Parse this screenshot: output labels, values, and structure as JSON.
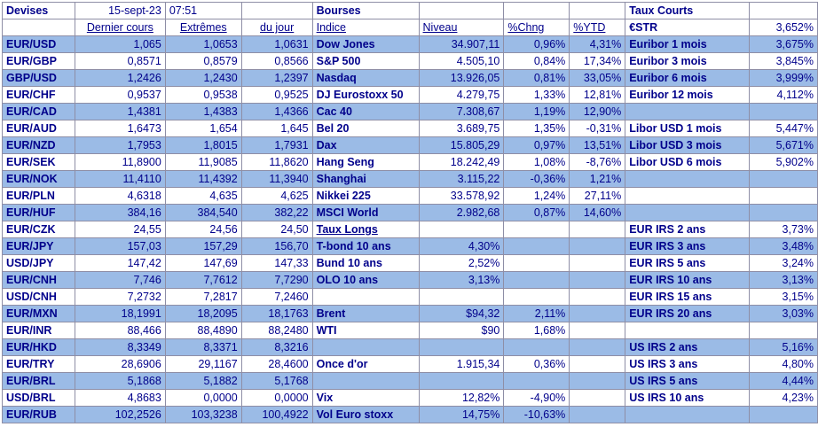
{
  "colors": {
    "odd_row_bg": "#9bbbe6",
    "even_row_bg": "#ffffff",
    "text": "#00008b",
    "border": "#8e8ea6"
  },
  "header": {
    "devises": "Devises",
    "date": "15-sept-23",
    "time": "07:51",
    "bourses": "Bourses",
    "taux_courts": "Taux Courts"
  },
  "subheader": {
    "dernier_cours": "Dernier cours",
    "extremes": "Extrêmes",
    "du_jour": "du jour",
    "indice": "Indice",
    "niveau": "Niveau",
    "chng": "%Chng",
    "ytd": "%YTD",
    "estr_label": "€STR",
    "estr_value": "3,652%"
  },
  "rows": [
    [
      "EUR/USD",
      "1,065",
      "1,0653",
      "1,0631",
      "Dow Jones",
      "34.907,11",
      "0,96%",
      "4,31%",
      "Euribor 1 mois",
      "3,675%"
    ],
    [
      "EUR/GBP",
      "0,8571",
      "0,8579",
      "0,8566",
      "S&P 500",
      "4.505,10",
      "0,84%",
      "17,34%",
      "Euribor 3 mois",
      "3,845%"
    ],
    [
      "GBP/USD",
      "1,2426",
      "1,2430",
      "1,2397",
      "Nasdaq",
      "13.926,05",
      "0,81%",
      "33,05%",
      "Euribor 6 mois",
      "3,999%"
    ],
    [
      "EUR/CHF",
      "0,9537",
      "0,9538",
      "0,9525",
      "DJ Eurostoxx 50",
      "4.279,75",
      "1,33%",
      "12,81%",
      "Euribor 12 mois",
      "4,112%"
    ],
    [
      "EUR/CAD",
      "1,4381",
      "1,4383",
      "1,4366",
      "Cac 40",
      "7.308,67",
      "1,19%",
      "12,90%",
      "",
      ""
    ],
    [
      "EUR/AUD",
      "1,6473",
      "1,654",
      "1,645",
      "Bel 20",
      "3.689,75",
      "1,35%",
      "-0,31%",
      "Libor USD 1 mois",
      "5,447%"
    ],
    [
      "EUR/NZD",
      "1,7953",
      "1,8015",
      "1,7931",
      "Dax",
      "15.805,29",
      "0,97%",
      "13,51%",
      "Libor USD 3 mois",
      "5,671%"
    ],
    [
      "EUR/SEK",
      "11,8900",
      "11,9085",
      "11,8620",
      "Hang Seng",
      "18.242,49",
      "1,08%",
      "-8,76%",
      "Libor USD 6 mois",
      "5,902%"
    ],
    [
      "EUR/NOK",
      "11,4110",
      "11,4392",
      "11,3940",
      "Shanghai",
      "3.115,22",
      "-0,36%",
      "1,21%",
      "",
      ""
    ],
    [
      "EUR/PLN",
      "4,6318",
      "4,635",
      "4,625",
      "Nikkei 225",
      "33.578,92",
      "1,24%",
      "27,11%",
      "",
      ""
    ],
    [
      "EUR/HUF",
      "384,16",
      "384,540",
      "382,22",
      "MSCI World",
      "2.982,68",
      "0,87%",
      "14,60%",
      "",
      ""
    ],
    [
      "EUR/CZK",
      "24,55",
      "24,56",
      "24,50",
      "Taux Longs",
      "",
      "",
      "",
      "EUR IRS 2 ans",
      "3,73%"
    ],
    [
      "EUR/JPY",
      "157,03",
      "157,29",
      "156,70",
      "T-bond 10 ans",
      "4,30%",
      "",
      "",
      "EUR IRS 3 ans",
      "3,48%"
    ],
    [
      "USD/JPY",
      "147,42",
      "147,69",
      "147,33",
      "Bund 10 ans",
      "2,52%",
      "",
      "",
      "EUR IRS 5 ans",
      "3,24%"
    ],
    [
      "EUR/CNH",
      "7,746",
      "7,7612",
      "7,7290",
      "OLO 10 ans",
      "3,13%",
      "",
      "",
      "EUR IRS 10 ans",
      "3,13%"
    ],
    [
      "USD/CNH",
      "7,2732",
      "7,2817",
      "7,2460",
      "",
      "",
      "",
      "",
      "EUR IRS 15 ans",
      "3,15%"
    ],
    [
      "EUR/MXN",
      "18,1991",
      "18,2095",
      "18,1763",
      "Brent",
      "$94,32",
      "2,11%",
      "",
      "EUR IRS 20 ans",
      "3,03%"
    ],
    [
      "EUR/INR",
      "88,466",
      "88,4890",
      "88,2480",
      "WTI",
      "$90",
      "1,68%",
      "",
      "",
      ""
    ],
    [
      "EUR/HKD",
      "8,3349",
      "8,3371",
      "8,3216",
      "",
      "",
      "",
      "",
      "US IRS 2 ans",
      "5,16%"
    ],
    [
      "EUR/TRY",
      "28,6906",
      "29,1167",
      "28,4600",
      "Once d'or",
      "1.915,34",
      "0,36%",
      "",
      "US IRS 3 ans",
      "4,80%"
    ],
    [
      "EUR/BRL",
      "5,1868",
      "5,1882",
      "5,1768",
      "",
      "",
      "",
      "",
      "US IRS 5 ans",
      "4,44%"
    ],
    [
      "USD/BRL",
      "4,8683",
      "0,0000",
      "0,0000",
      "Vix",
      "12,82%",
      "-4,90%",
      "",
      "US IRS 10 ans",
      "4,23%"
    ],
    [
      "EUR/RUB",
      "102,2526",
      "103,3238",
      "100,4922",
      "Vol Euro stoxx",
      "14,75%",
      "-10,63%",
      "",
      "",
      ""
    ]
  ]
}
